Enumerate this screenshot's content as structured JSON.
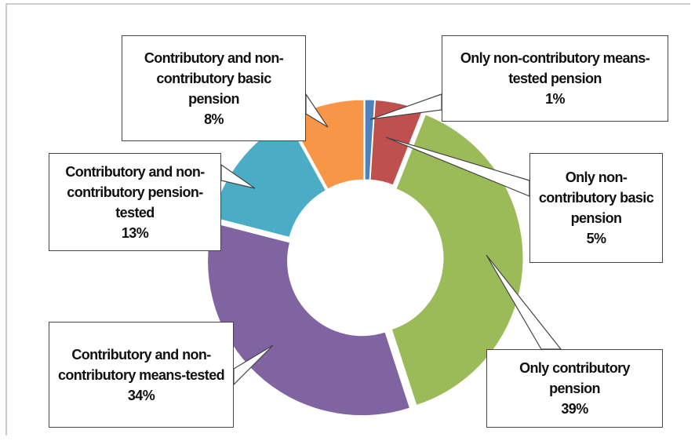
{
  "chart_data": {
    "type": "donut",
    "categories": [
      "Only non-contributory means-tested pension",
      "Only non-contributory basic pension",
      "Only contributory pension",
      "Contributory and non-contributory means-tested",
      "Contributory and non-contributory pension-tested",
      "Contributory and non-contributory basic pension"
    ],
    "values": [
      1,
      5,
      39,
      34,
      13,
      8
    ],
    "value_labels": [
      "1%",
      "5%",
      "39%",
      "34%",
      "13%",
      "8%"
    ],
    "colors": [
      "#4f81bd",
      "#c0504d",
      "#9bbb59",
      "#8064a2",
      "#4bacc6",
      "#f79646"
    ]
  }
}
